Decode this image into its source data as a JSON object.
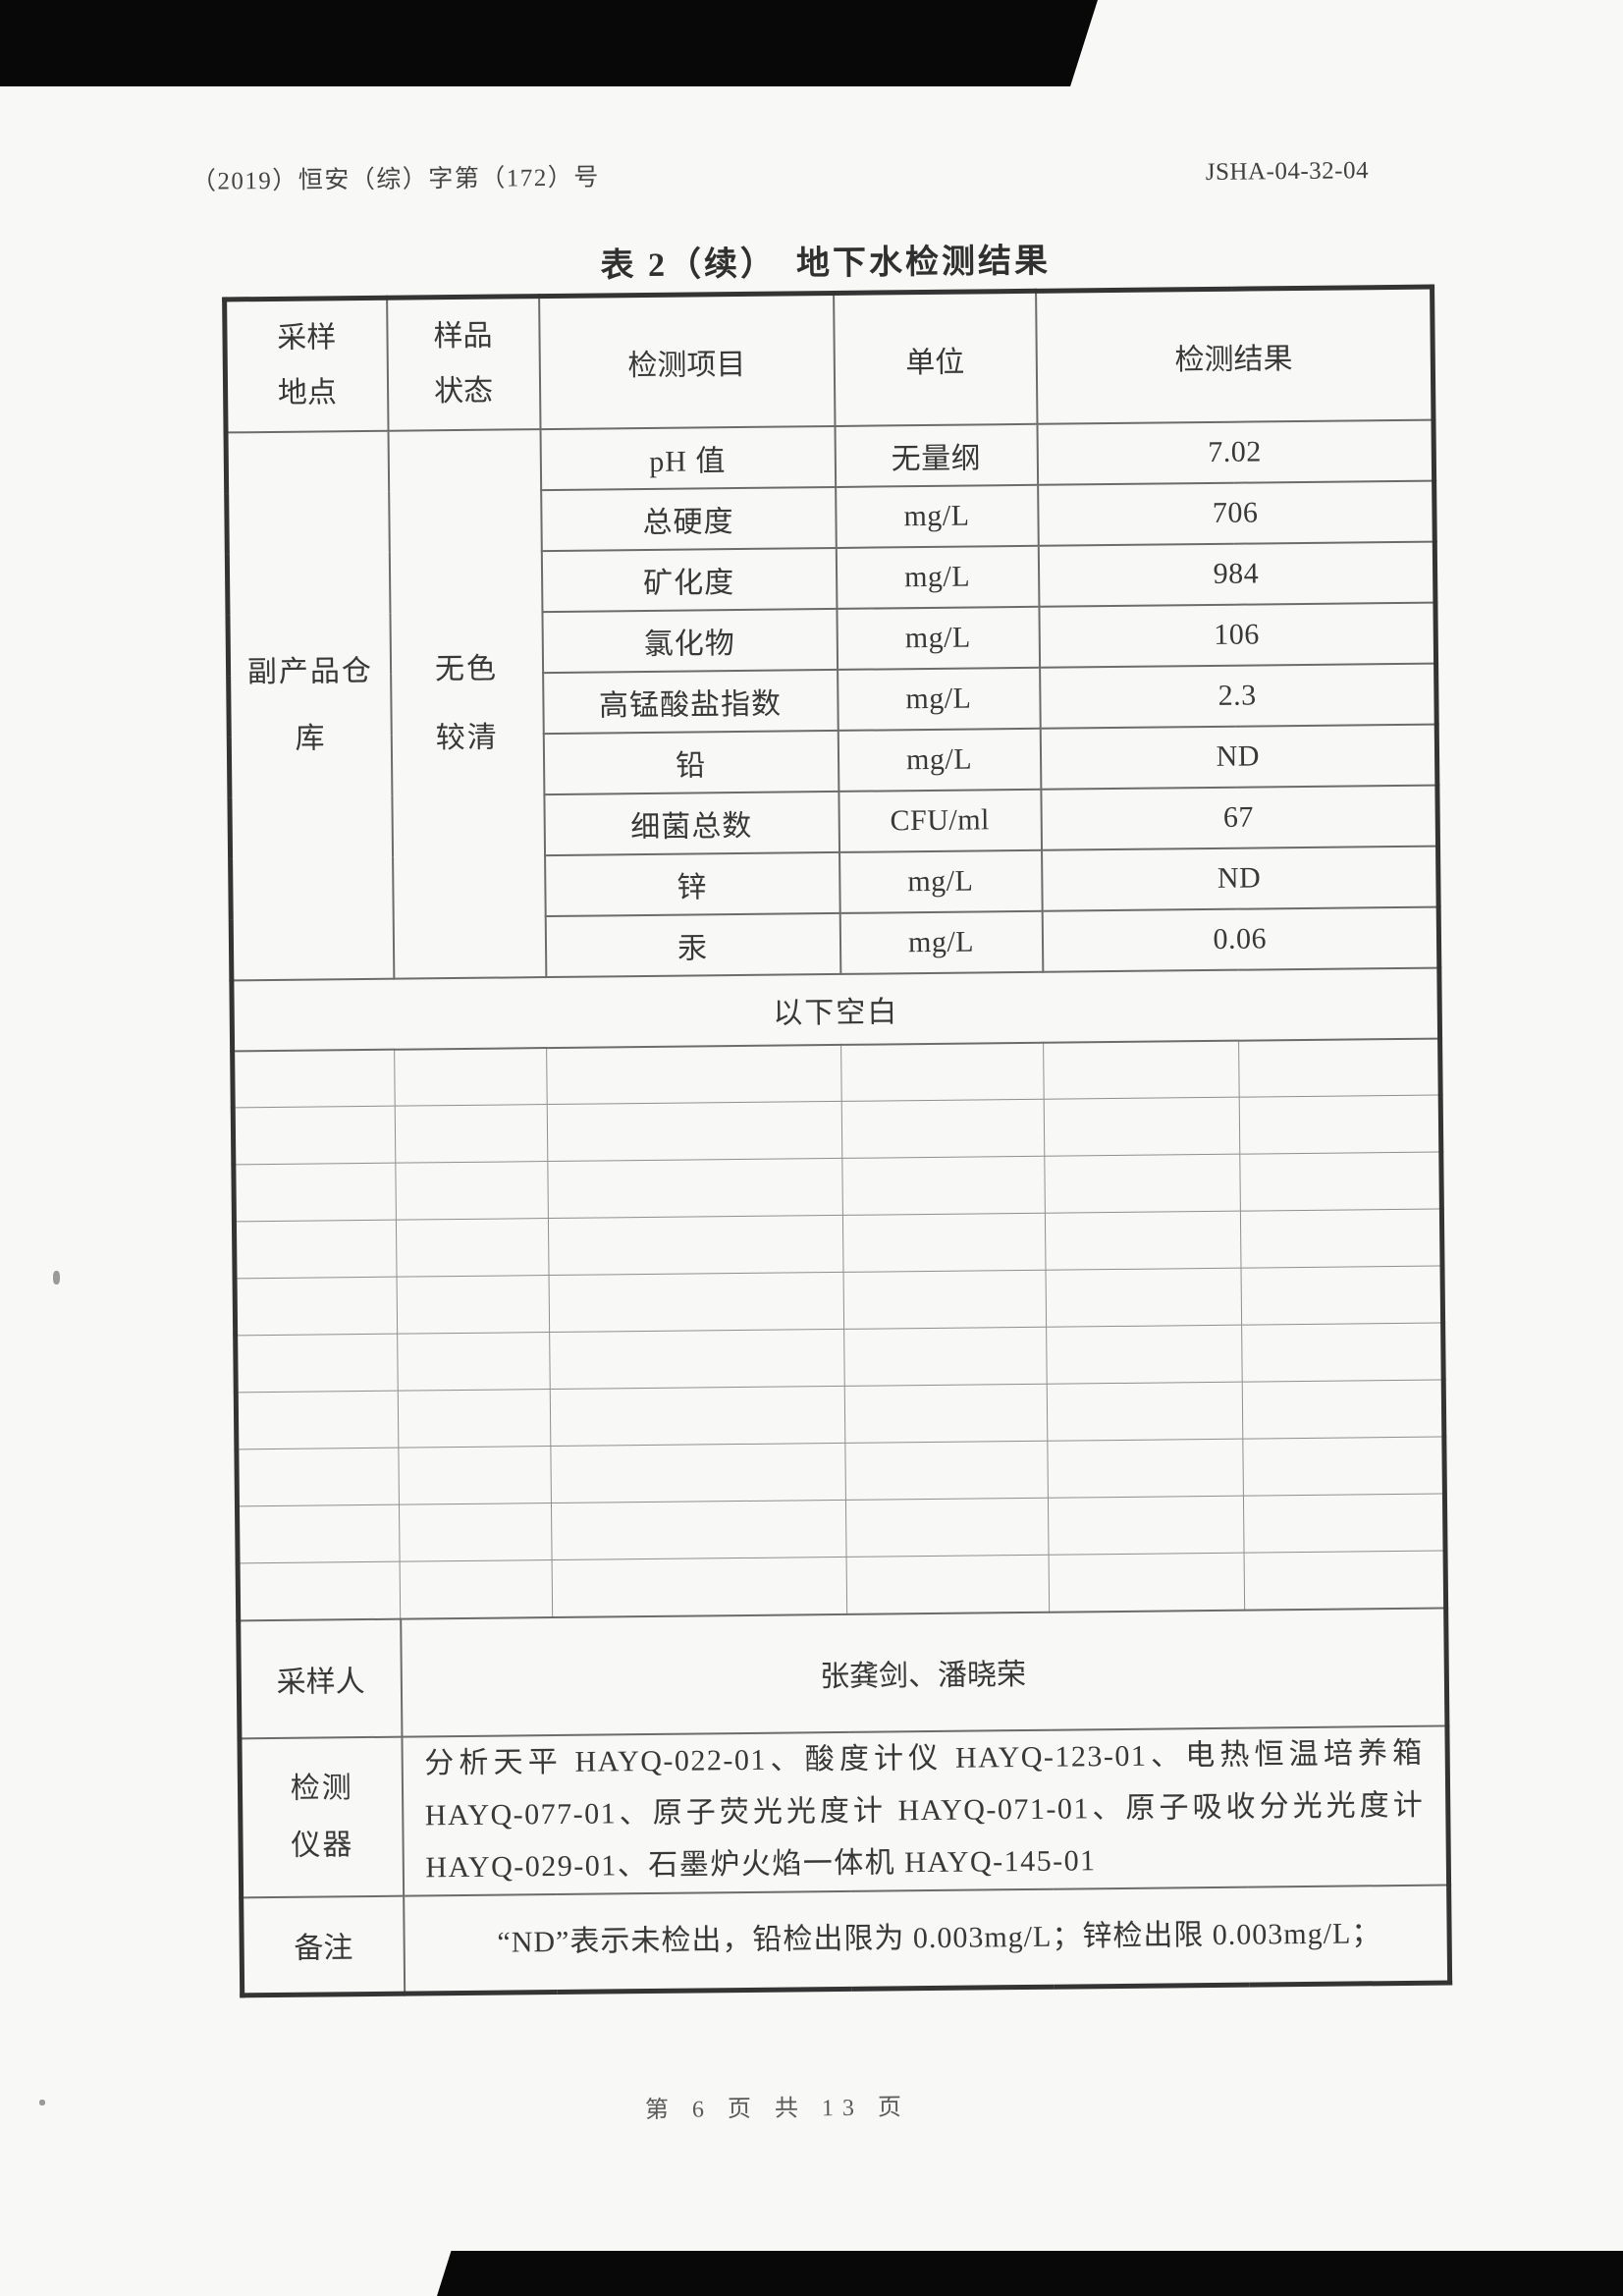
{
  "page": {
    "doc_number": "（2019）恒安（综）字第（172）号",
    "form_code": "JSHA-04-32-04",
    "title": "表 2（续）　地下水检测结果",
    "footer": "第 6 页 共 13 页"
  },
  "table": {
    "headers": [
      "采样地点",
      "样品状态",
      "检测项目",
      "单位",
      "检测结果"
    ],
    "sample_location": "副产品仓库",
    "sample_state": "无色较清",
    "rows": [
      {
        "item": "pH 值",
        "unit": "无量纲",
        "result": "7.02"
      },
      {
        "item": "总硬度",
        "unit": "mg/L",
        "result": "706"
      },
      {
        "item": "矿化度",
        "unit": "mg/L",
        "result": "984"
      },
      {
        "item": "氯化物",
        "unit": "mg/L",
        "result": "106"
      },
      {
        "item": "高锰酸盐指数",
        "unit": "mg/L",
        "result": "2.3"
      },
      {
        "item": "铅",
        "unit": "mg/L",
        "result": "ND"
      },
      {
        "item": "细菌总数",
        "unit": "CFU/ml",
        "result": "67"
      },
      {
        "item": "锌",
        "unit": "mg/L",
        "result": "ND"
      },
      {
        "item": "汞",
        "unit": "mg/L",
        "result": "0.06"
      }
    ],
    "blank_note": "以下空白",
    "empty_row_count": 10,
    "sampler": {
      "label": "采样人",
      "value": "张龚剑、潘晓荣"
    },
    "instruments": {
      "label": "检测仪器",
      "lines": [
        "分析天平 HAYQ-022-01、酸度计仪 HAYQ-123-01、电热恒温培养箱",
        "HAYQ-077-01、原子荧光光度计 HAYQ-071-01、原子吸收分光光度计",
        "HAYQ-029-01、石墨炉火焰一体机 HAYQ-145-01"
      ]
    },
    "remark": {
      "label": "备注",
      "value": "“ND”表示未检出，铅检出限为 0.003mg/L；锌检出限 0.003mg/L；"
    }
  }
}
